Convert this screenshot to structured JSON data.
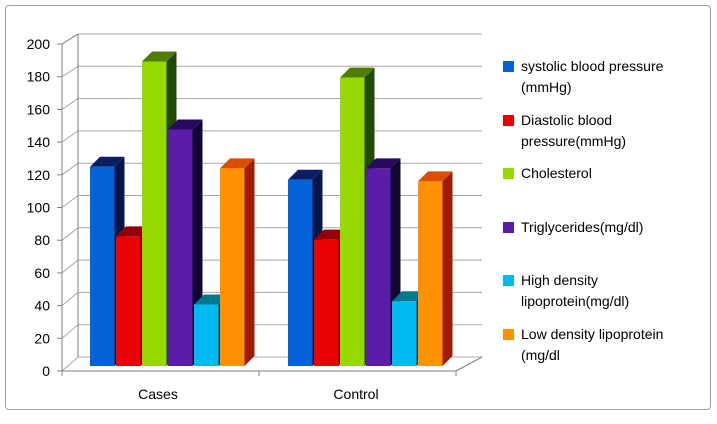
{
  "chart_data": {
    "type": "bar",
    "style": "3d-clustered-column",
    "title": "",
    "xlabel": "",
    "ylabel": "",
    "categories": [
      "Cases",
      "Control"
    ],
    "series": [
      {
        "name": "systolic blood pressure (mmHg)",
        "color": "#0462d9",
        "top_color": "#0a1e63",
        "side_color": "#071648",
        "values": [
          123,
          115
        ]
      },
      {
        "name": "Diastolic blood pressure(mmHg)",
        "color": "#e80202",
        "top_color": "#930008",
        "side_color": "#700000",
        "values": [
          80,
          78
        ]
      },
      {
        "name": "Cholesterol",
        "color": "#97d702",
        "top_color": "#507d04",
        "side_color": "#1f4b07",
        "values": [
          188,
          178
        ]
      },
      {
        "name": "Triglycerides(mg/dl)",
        "color": "#5b1ca8",
        "top_color": "#270a60",
        "side_color": "#100735",
        "values": [
          146,
          122
        ]
      },
      {
        "name": "High density lipoprotein(mg/dl)",
        "color": "#02baf2",
        "top_color": "#02798f",
        "side_color": "#02404f",
        "values": [
          38,
          40
        ]
      },
      {
        "name": "Low density lipoprotein (mg/dl",
        "color": "#ff9102",
        "top_color": "#db4e02",
        "side_color": "#9e1c02",
        "values": [
          122,
          114
        ]
      }
    ],
    "ylim": [
      0,
      200
    ],
    "ytick_step": 20,
    "ytick_labels": [
      "0",
      "20",
      "40",
      "60",
      "80",
      "100",
      "120",
      "140",
      "160",
      "180",
      "200"
    ],
    "grid": true,
    "legend_position": "right"
  },
  "colors": {
    "grid": "#a8a8a8",
    "axis": "#808080",
    "text": "#000000",
    "background": "#ffffff",
    "frame_border": "#a0a0a0"
  }
}
